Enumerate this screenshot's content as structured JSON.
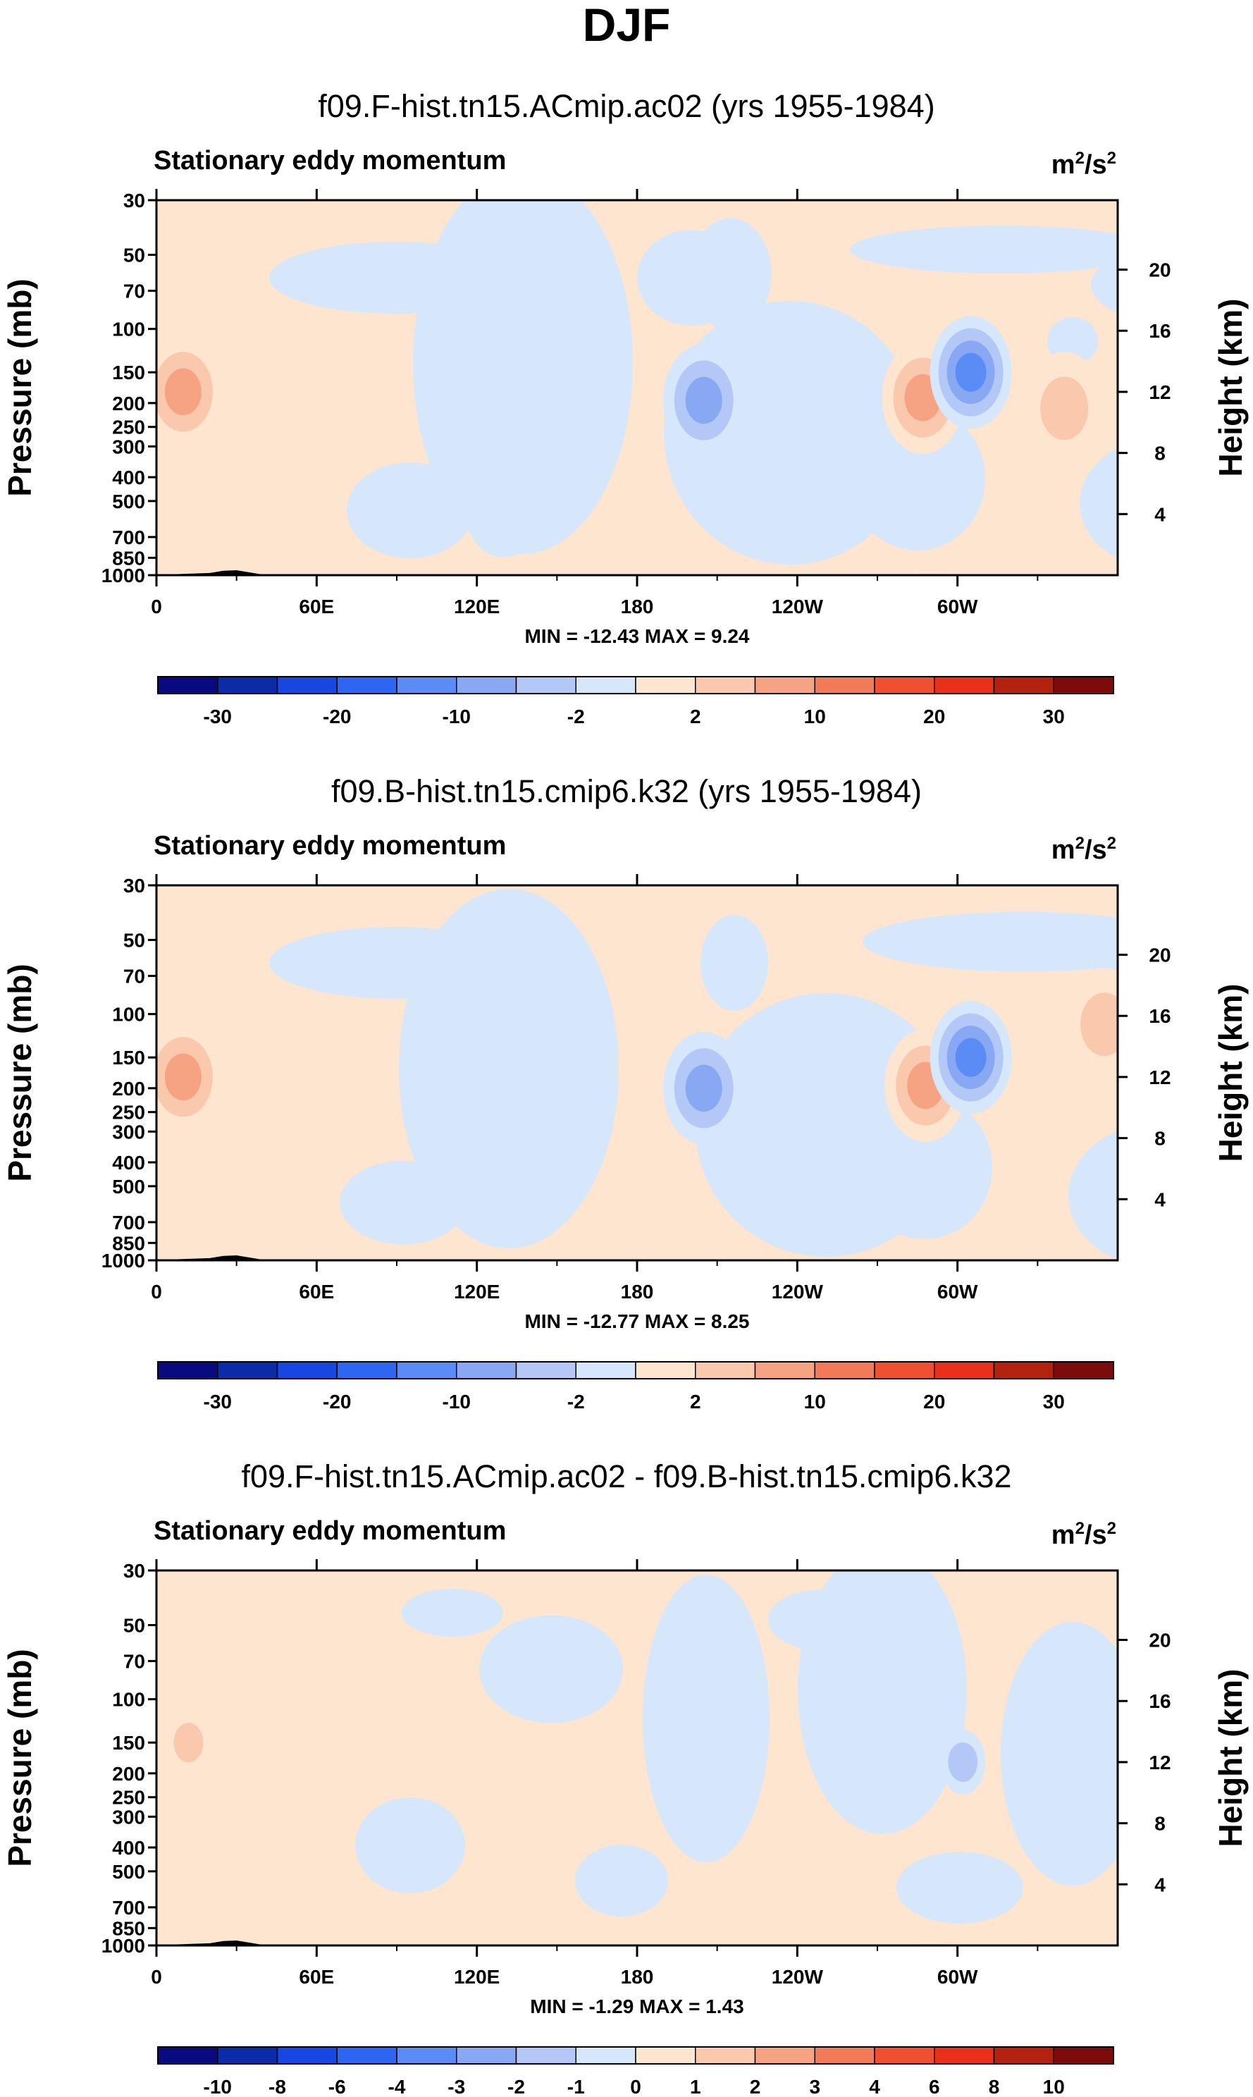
{
  "figure_title": "DJF",
  "chart_data": [
    {
      "type": "heatmap",
      "title": "f09.F-hist.tn15.ACmip.ac02 (yrs 1955-1984)",
      "left_label": "Stationary eddy momentum",
      "units": {
        "base": "m",
        "exp": "2",
        "mid": "/s",
        "exp2": "2"
      },
      "ylabel": "Pressure (mb)",
      "ylabel_right": "Height (km)",
      "x_ticks": [
        "0",
        "60E",
        "120E",
        "180",
        "120W",
        "60W"
      ],
      "y_ticks": [
        "30",
        "50",
        "70",
        "100",
        "150",
        "200",
        "250",
        "300",
        "400",
        "500",
        "700",
        "850",
        "1000"
      ],
      "y_ticks_right": [
        "20",
        "16",
        "12",
        "8",
        "4"
      ],
      "stats": "MIN = -12.43   MAX =  9.24",
      "colorbar_labels": [
        "-30",
        "-20",
        "-10",
        "-2",
        "2",
        "10",
        "20",
        "30"
      ],
      "ylim": [
        1000,
        30
      ],
      "features": [
        {
          "lon": 10,
          "p": 180,
          "value": 8
        },
        {
          "lon": 205,
          "p": 195,
          "value": -6
        },
        {
          "lon": 287,
          "p": 190,
          "value": 8
        },
        {
          "lon": 305,
          "p": 150,
          "value": -12.43
        },
        {
          "lon": 340,
          "p": 210,
          "value": 3
        },
        {
          "lon": 215,
          "p": 60,
          "value": -1
        },
        {
          "lon": 130,
          "p": 500,
          "value": -1.5
        }
      ]
    },
    {
      "type": "heatmap",
      "title": "f09.B-hist.tn15.cmip6.k32 (yrs 1955-1984)",
      "left_label": "Stationary eddy momentum",
      "units": {
        "base": "m",
        "exp": "2",
        "mid": "/s",
        "exp2": "2"
      },
      "ylabel": "Pressure (mb)",
      "ylabel_right": "Height (km)",
      "x_ticks": [
        "0",
        "60E",
        "120E",
        "180",
        "120W",
        "60W"
      ],
      "y_ticks": [
        "30",
        "50",
        "70",
        "100",
        "150",
        "200",
        "250",
        "300",
        "400",
        "500",
        "700",
        "850",
        "1000"
      ],
      "y_ticks_right": [
        "20",
        "16",
        "12",
        "8",
        "4"
      ],
      "stats": "MIN = -12.77   MAX =  8.25",
      "colorbar_labels": [
        "-30",
        "-20",
        "-10",
        "-2",
        "2",
        "10",
        "20",
        "30"
      ],
      "ylim": [
        1000,
        30
      ],
      "features": [
        {
          "lon": 10,
          "p": 180,
          "value": 8
        },
        {
          "lon": 205,
          "p": 200,
          "value": -6
        },
        {
          "lon": 288,
          "p": 195,
          "value": 8.25
        },
        {
          "lon": 305,
          "p": 150,
          "value": -12.77
        },
        {
          "lon": 355,
          "p": 110,
          "value": 3
        }
      ]
    },
    {
      "type": "heatmap",
      "title": "f09.F-hist.tn15.ACmip.ac02 - f09.B-hist.tn15.cmip6.k32",
      "left_label": "Stationary eddy momentum",
      "units": {
        "base": "m",
        "exp": "2",
        "mid": "/s",
        "exp2": "2"
      },
      "ylabel": "Pressure (mb)",
      "ylabel_right": "Height (km)",
      "x_ticks": [
        "0",
        "60E",
        "120E",
        "180",
        "120W",
        "60W"
      ],
      "y_ticks": [
        "30",
        "50",
        "70",
        "100",
        "150",
        "200",
        "250",
        "300",
        "400",
        "500",
        "700",
        "850",
        "1000"
      ],
      "y_ticks_right": [
        "20",
        "16",
        "12",
        "8",
        "4"
      ],
      "stats": "MIN =  -1.29   MAX =  1.43",
      "colorbar_labels": [
        "-10",
        "-8",
        "-6",
        "-4",
        "-3",
        "-2",
        "-1",
        "0",
        "1",
        "2",
        "3",
        "4",
        "6",
        "8",
        "10"
      ],
      "ylim": [
        1000,
        30
      ],
      "features": [
        {
          "lon": 12,
          "p": 150,
          "value": 1.43
        },
        {
          "lon": 302,
          "p": 180,
          "value": -1.29
        }
      ]
    }
  ],
  "colors": {
    "diverging": [
      "#0a0a80",
      "#0b2ba8",
      "#1846e0",
      "#2d66f2",
      "#5b8bf5",
      "#88a8f3",
      "#b3c8f6",
      "#d6e6fb",
      "#fde5d0",
      "#f9c8ad",
      "#f6a384",
      "#f37a58",
      "#ee5030",
      "#e8301b",
      "#b5210f",
      "#7e0b0b"
    ],
    "topography": "#000000",
    "axes": "#000000"
  }
}
